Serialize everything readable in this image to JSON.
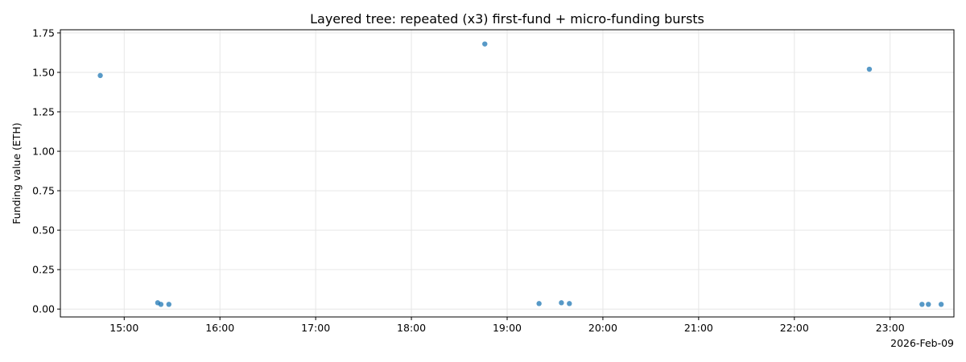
{
  "chart_data": {
    "type": "scatter",
    "title": "Layered tree: repeated (x3) first-fund + micro-funding bursts",
    "xlabel": "",
    "ylabel": "Funding value (ETH)",
    "date_label": "2026-Feb-09",
    "x_ticks": [
      "15:00",
      "16:00",
      "17:00",
      "18:00",
      "19:00",
      "20:00",
      "21:00",
      "22:00",
      "23:00"
    ],
    "y_ticks": [
      "0.00",
      "0.25",
      "0.50",
      "0.75",
      "1.00",
      "1.25",
      "1.50",
      "1.75"
    ],
    "xlim": [
      "14:20",
      "23:40"
    ],
    "ylim": [
      -0.05,
      1.77
    ],
    "grid": true,
    "marker_color": "#1f77b4",
    "points": [
      {
        "x": "14:45",
        "y": 1.48
      },
      {
        "x": "15:21",
        "y": 0.04
      },
      {
        "x": "15:23",
        "y": 0.03
      },
      {
        "x": "15:28",
        "y": 0.03
      },
      {
        "x": "18:46",
        "y": 1.68
      },
      {
        "x": "19:20",
        "y": 0.035
      },
      {
        "x": "19:34",
        "y": 0.04
      },
      {
        "x": "19:39",
        "y": 0.035
      },
      {
        "x": "22:47",
        "y": 1.52
      },
      {
        "x": "23:20",
        "y": 0.03
      },
      {
        "x": "23:24",
        "y": 0.03
      },
      {
        "x": "23:32",
        "y": 0.03
      }
    ]
  }
}
